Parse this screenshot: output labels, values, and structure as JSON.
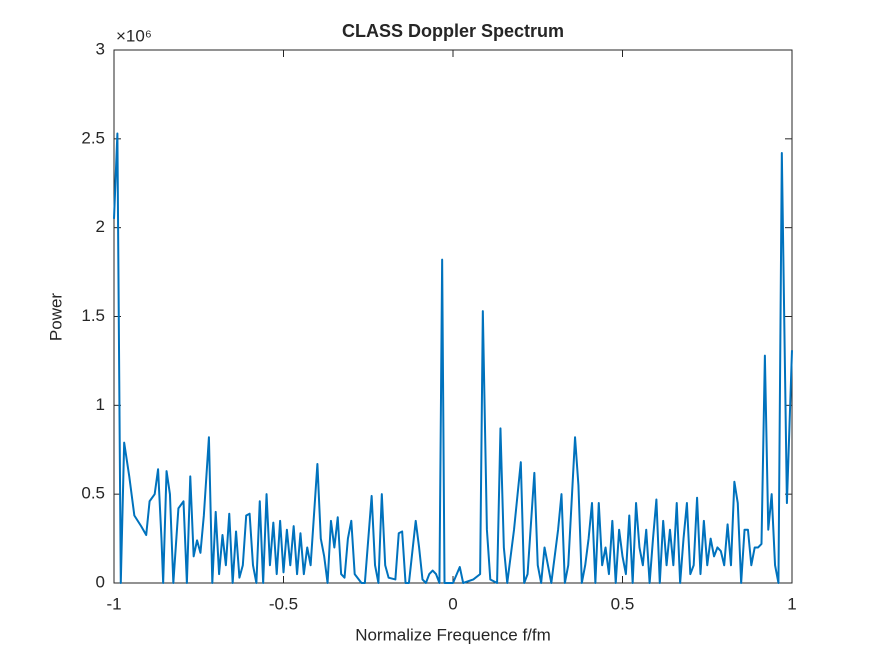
{
  "chart_data": {
    "type": "line",
    "title": "CLASS Doppler Spectrum",
    "xlabel": "Normalize Frequence f/fm",
    "ylabel": "Power",
    "y_exponent_label": "×10⁶",
    "xlim": [
      -1,
      1
    ],
    "xticks": [
      -1,
      -0.5,
      0,
      0.5,
      1
    ],
    "ylim": [
      0,
      3
    ],
    "yticks": [
      0,
      0.5,
      1,
      1.5,
      2,
      2.5,
      3
    ],
    "grid": false,
    "x": [
      -1.0,
      -0.99,
      -0.98,
      -0.97,
      -0.955,
      -0.94,
      -0.92,
      -0.905,
      -0.895,
      -0.88,
      -0.87,
      -0.86,
      -0.855,
      -0.845,
      -0.835,
      -0.825,
      -0.81,
      -0.795,
      -0.785,
      -0.775,
      -0.765,
      -0.755,
      -0.745,
      -0.735,
      -0.72,
      -0.71,
      -0.7,
      -0.69,
      -0.68,
      -0.67,
      -0.66,
      -0.65,
      -0.64,
      -0.63,
      -0.62,
      -0.61,
      -0.6,
      -0.59,
      -0.58,
      -0.57,
      -0.56,
      -0.55,
      -0.54,
      -0.53,
      -0.52,
      -0.51,
      -0.5,
      -0.49,
      -0.48,
      -0.47,
      -0.46,
      -0.45,
      -0.44,
      -0.43,
      -0.42,
      -0.4,
      -0.39,
      -0.38,
      -0.37,
      -0.36,
      -0.35,
      -0.34,
      -0.33,
      -0.32,
      -0.31,
      -0.3,
      -0.29,
      -0.27,
      -0.26,
      -0.24,
      -0.23,
      -0.22,
      -0.21,
      -0.2,
      -0.19,
      -0.17,
      -0.16,
      -0.15,
      -0.14,
      -0.13,
      -0.11,
      -0.1,
      -0.09,
      -0.08,
      -0.07,
      -0.06,
      -0.05,
      -0.04,
      -0.032,
      -0.025,
      -0.01,
      0,
      0.02,
      0.03,
      0.06,
      0.08,
      0.088,
      0.1,
      0.11,
      0.13,
      0.14,
      0.15,
      0.16,
      0.18,
      0.2,
      0.21,
      0.22,
      0.24,
      0.25,
      0.26,
      0.27,
      0.28,
      0.29,
      0.31,
      0.32,
      0.33,
      0.34,
      0.36,
      0.37,
      0.38,
      0.39,
      0.4,
      0.41,
      0.42,
      0.43,
      0.44,
      0.45,
      0.46,
      0.47,
      0.48,
      0.49,
      0.5,
      0.51,
      0.52,
      0.53,
      0.54,
      0.55,
      0.56,
      0.57,
      0.58,
      0.59,
      0.6,
      0.61,
      0.62,
      0.63,
      0.64,
      0.65,
      0.66,
      0.67,
      0.68,
      0.69,
      0.7,
      0.71,
      0.72,
      0.73,
      0.74,
      0.75,
      0.76,
      0.77,
      0.78,
      0.79,
      0.8,
      0.81,
      0.82,
      0.83,
      0.84,
      0.85,
      0.86,
      0.87,
      0.88,
      0.89,
      0.9,
      0.91,
      0.92,
      0.93,
      0.94,
      0.95,
      0.96,
      0.97,
      0.985,
      1.0
    ],
    "series": [
      {
        "color": "#0072bd",
        "values": [
          2.05,
          2.53,
          0,
          0.79,
          0.6,
          0.38,
          0.32,
          0.27,
          0.46,
          0.5,
          0.64,
          0.25,
          0,
          0.63,
          0.5,
          0,
          0.42,
          0.46,
          0,
          0.6,
          0.15,
          0.24,
          0.17,
          0.38,
          0.82,
          0,
          0.4,
          0.05,
          0.27,
          0.1,
          0.39,
          0,
          0.29,
          0.03,
          0.1,
          0.38,
          0.39,
          0.1,
          0,
          0.46,
          0,
          0.5,
          0.1,
          0.34,
          0.05,
          0.35,
          0.06,
          0.3,
          0.1,
          0.32,
          0.05,
          0.28,
          0.05,
          0.2,
          0.1,
          0.67,
          0.25,
          0.15,
          0,
          0.35,
          0.2,
          0.37,
          0.05,
          0.03,
          0.25,
          0.35,
          0.05,
          0,
          0,
          0.49,
          0.1,
          0,
          0.5,
          0.1,
          0.03,
          0.02,
          0.28,
          0.29,
          0,
          0,
          0.35,
          0.2,
          0.02,
          0,
          0.05,
          0.07,
          0.05,
          0,
          1.82,
          0,
          0,
          0,
          0.09,
          0,
          0.02,
          0.05,
          1.53,
          0.3,
          0.02,
          0,
          0.87,
          0.2,
          0,
          0.3,
          0.68,
          0,
          0.05,
          0.62,
          0.1,
          0,
          0.2,
          0.1,
          0,
          0.3,
          0.5,
          0,
          0.1,
          0.82,
          0.55,
          0,
          0.1,
          0.25,
          0.45,
          0,
          0.45,
          0.1,
          0.2,
          0.05,
          0.35,
          0,
          0.3,
          0.15,
          0.05,
          0.38,
          0,
          0.45,
          0.2,
          0.1,
          0.3,
          0,
          0.25,
          0.47,
          0,
          0.35,
          0.1,
          0.3,
          0.1,
          0.45,
          0,
          0.25,
          0.45,
          0.05,
          0.1,
          0.48,
          0.05,
          0.35,
          0.1,
          0.25,
          0.15,
          0.2,
          0.18,
          0.1,
          0.33,
          0.1,
          0.57,
          0.45,
          0,
          0.3,
          0.3,
          0.1,
          0.2,
          0.2,
          0.22,
          1.28,
          0.3,
          0.5,
          0.1,
          0,
          2.42,
          0.45,
          1.31
        ]
      }
    ]
  }
}
